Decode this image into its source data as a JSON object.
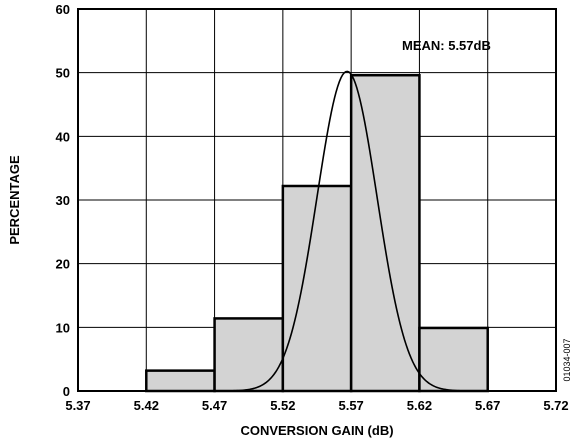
{
  "chart_data": {
    "type": "bar",
    "subtype": "histogram-with-normal-curve",
    "xlabel": "CONVERSION GAIN (dB)",
    "ylabel": "PERCENTAGE",
    "xlim": [
      5.37,
      5.72
    ],
    "ylim": [
      0,
      60
    ],
    "x_ticks": [
      "5.37",
      "5.42",
      "5.47",
      "5.52",
      "5.57",
      "5.62",
      "5.67",
      "5.72"
    ],
    "y_ticks": [
      "0",
      "10",
      "20",
      "30",
      "40",
      "50",
      "60"
    ],
    "grid": true,
    "bins": [
      {
        "start": 5.37,
        "end": 5.42,
        "value": 0
      },
      {
        "start": 5.42,
        "end": 5.47,
        "value": 3.2
      },
      {
        "start": 5.47,
        "end": 5.52,
        "value": 11.4
      },
      {
        "start": 5.52,
        "end": 5.57,
        "value": 32.2
      },
      {
        "start": 5.57,
        "end": 5.62,
        "value": 49.6
      },
      {
        "start": 5.62,
        "end": 5.67,
        "value": 9.9
      },
      {
        "start": 5.67,
        "end": 5.72,
        "value": 0
      }
    ],
    "curve": {
      "mean": 5.567,
      "sigma": 0.022,
      "peak": 50.2
    },
    "annotation": "MEAN: 5.57dB",
    "figure_id": "01034-007"
  },
  "colors": {
    "bar_fill": "#d3d3d3",
    "bar_stroke": "#000000",
    "grid": "#000000",
    "curve": "#000000"
  }
}
